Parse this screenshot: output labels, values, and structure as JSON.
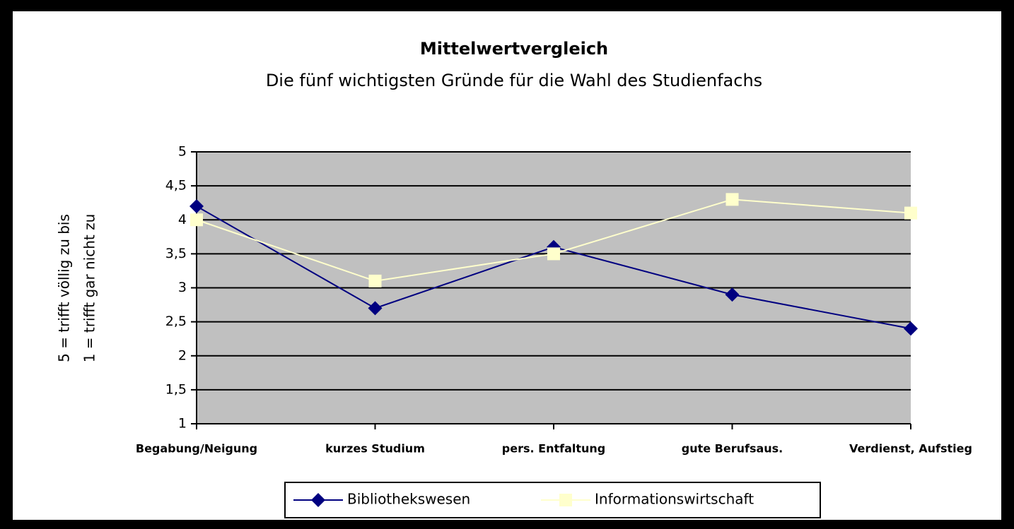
{
  "chart_data": {
    "type": "line",
    "title": "Mittelwertvergleich",
    "subtitle": "Die fünf wichtigsten Gründe für die Wahl des Studienfachs",
    "ylabel": [
      "5 = trifft völlig zu bis",
      "1 = trifft gar nicht zu"
    ],
    "categories": [
      "Begabung/Neigung",
      "kurzes Studium",
      "pers. Entfaltung",
      "gute Berufsaus.",
      "Verdienst, Aufstieg"
    ],
    "series": [
      {
        "name": "Bibliothekswesen",
        "color": "#000080",
        "marker": "diamond",
        "values": [
          4.2,
          2.7,
          3.6,
          2.9,
          2.4
        ]
      },
      {
        "name": "Informationswirtschaft",
        "color": "#ffffcc",
        "marker": "square",
        "values": [
          4.0,
          3.1,
          3.5,
          4.3,
          4.1
        ]
      }
    ],
    "ylim": [
      1,
      5
    ],
    "yticks": [
      1,
      {
        "value": 1.5,
        "label": "1,5"
      },
      2,
      {
        "value": 2.5,
        "label": "2,5"
      },
      3,
      {
        "value": 3.5,
        "label": "3,5"
      },
      4,
      {
        "value": 4.5,
        "label": "4,5"
      },
      5
    ],
    "grid": true,
    "plot_background": "#c0c0c0",
    "legend": "bottom"
  }
}
